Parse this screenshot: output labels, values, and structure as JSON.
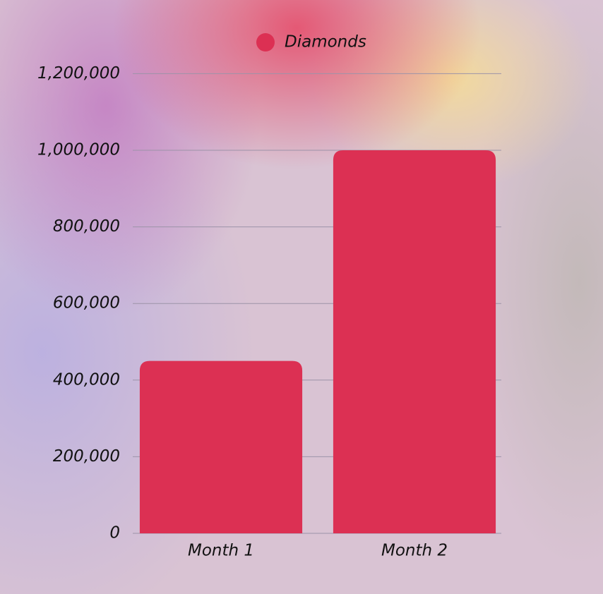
{
  "chart_data": {
    "type": "bar",
    "categories": [
      "Month 1",
      "Month 2"
    ],
    "series": [
      {
        "name": "Diamonds",
        "color": "#dc3053",
        "values": [
          450000,
          1000000
        ]
      }
    ],
    "ylim": [
      0,
      1200000
    ],
    "yticks": [
      0,
      {
        "value": 200000,
        "label": "200,000"
      },
      {
        "value": 400000,
        "label": "400,000"
      },
      {
        "value": 600000,
        "label": "600,000"
      },
      {
        "value": 800000,
        "label": "800,000"
      },
      {
        "value": 1000000,
        "label": "1,000,000"
      },
      {
        "value": 1200000,
        "label": "1,200,000"
      }
    ],
    "grid": true,
    "legend": "top"
  }
}
